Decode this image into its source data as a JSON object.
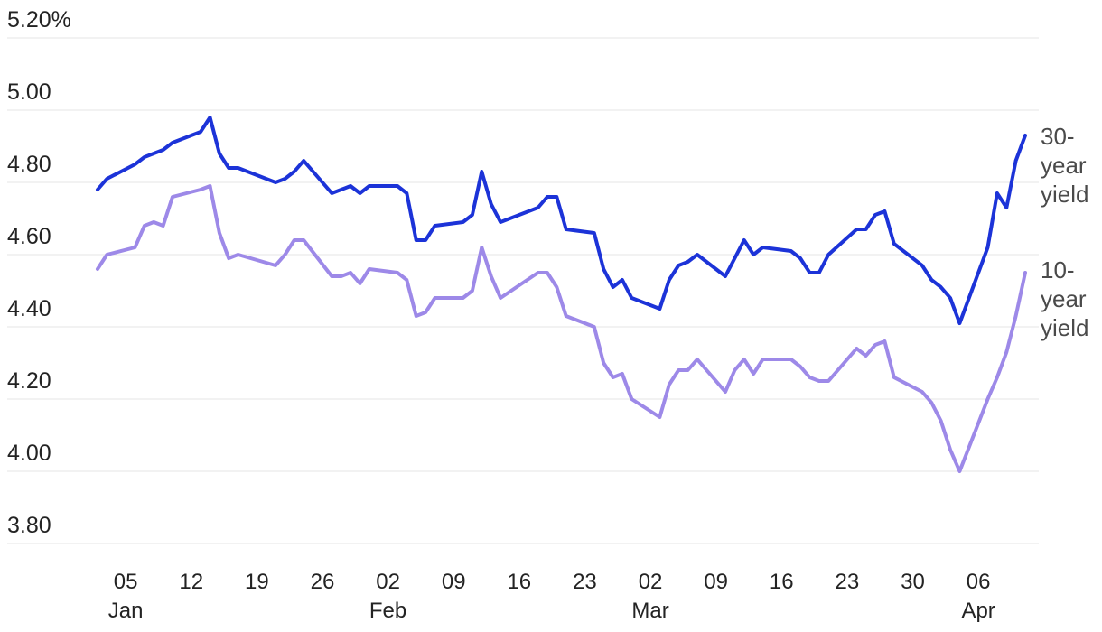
{
  "chart_data": {
    "type": "line",
    "title": "",
    "ylabel": "",
    "xlabel": "",
    "grid": "horizontal",
    "legend_position": "right-inline",
    "colors": {
      "line_30_year": "#1c33d8",
      "line_10_year": "#9d89e8",
      "gridline": "#e4e4e4",
      "axis_text": "#232323",
      "series_label_text": "#4a4a4a",
      "background": "#ffffff"
    },
    "ylim": [
      3.8,
      5.2
    ],
    "y_ticks": [
      {
        "label": "5.20%",
        "value": 5.2
      },
      {
        "label": "5.00",
        "value": 5.0
      },
      {
        "label": "4.80",
        "value": 4.8
      },
      {
        "label": "4.60",
        "value": 4.6
      },
      {
        "label": "4.40",
        "value": 4.4
      },
      {
        "label": "4.20",
        "value": 4.2
      },
      {
        "label": "4.00",
        "value": 4.0
      },
      {
        "label": "3.80",
        "value": 3.8
      }
    ],
    "x_ticks": [
      {
        "day": "05",
        "month": "Jan",
        "date": "2025-01-05"
      },
      {
        "day": "12",
        "month": "",
        "date": "2025-01-12"
      },
      {
        "day": "19",
        "month": "",
        "date": "2025-01-19"
      },
      {
        "day": "26",
        "month": "",
        "date": "2025-01-26"
      },
      {
        "day": "02",
        "month": "Feb",
        "date": "2025-02-02"
      },
      {
        "day": "09",
        "month": "",
        "date": "2025-02-09"
      },
      {
        "day": "16",
        "month": "",
        "date": "2025-02-16"
      },
      {
        "day": "23",
        "month": "",
        "date": "2025-02-23"
      },
      {
        "day": "02",
        "month": "Mar",
        "date": "2025-03-02"
      },
      {
        "day": "09",
        "month": "",
        "date": "2025-03-09"
      },
      {
        "day": "16",
        "month": "",
        "date": "2025-03-16"
      },
      {
        "day": "23",
        "month": "",
        "date": "2025-03-23"
      },
      {
        "day": "30",
        "month": "",
        "date": "2025-03-30"
      },
      {
        "day": "06",
        "month": "Apr",
        "date": "2025-04-06"
      }
    ],
    "x_range": {
      "start": "2025-01-02",
      "end": "2025-04-11"
    },
    "x": [
      "2025-01-02",
      "2025-01-03",
      "2025-01-06",
      "2025-01-07",
      "2025-01-08",
      "2025-01-09",
      "2025-01-10",
      "2025-01-13",
      "2025-01-14",
      "2025-01-15",
      "2025-01-16",
      "2025-01-17",
      "2025-01-21",
      "2025-01-22",
      "2025-01-23",
      "2025-01-24",
      "2025-01-27",
      "2025-01-28",
      "2025-01-29",
      "2025-01-30",
      "2025-01-31",
      "2025-02-03",
      "2025-02-04",
      "2025-02-05",
      "2025-02-06",
      "2025-02-07",
      "2025-02-10",
      "2025-02-11",
      "2025-02-12",
      "2025-02-13",
      "2025-02-14",
      "2025-02-18",
      "2025-02-19",
      "2025-02-20",
      "2025-02-21",
      "2025-02-24",
      "2025-02-25",
      "2025-02-26",
      "2025-02-27",
      "2025-02-28",
      "2025-03-03",
      "2025-03-04",
      "2025-03-05",
      "2025-03-06",
      "2025-03-07",
      "2025-03-10",
      "2025-03-11",
      "2025-03-12",
      "2025-03-13",
      "2025-03-14",
      "2025-03-17",
      "2025-03-18",
      "2025-03-19",
      "2025-03-20",
      "2025-03-21",
      "2025-03-24",
      "2025-03-25",
      "2025-03-26",
      "2025-03-27",
      "2025-03-28",
      "2025-03-31",
      "2025-04-01",
      "2025-04-02",
      "2025-04-03",
      "2025-04-04",
      "2025-04-07",
      "2025-04-08",
      "2025-04-09",
      "2025-04-10",
      "2025-04-11"
    ],
    "series": [
      {
        "name": "30-year yield",
        "right_label_lines": [
          "30-",
          "year",
          "yield"
        ],
        "color_key": "line_30_year",
        "values": [
          4.78,
          4.81,
          4.85,
          4.87,
          4.88,
          4.89,
          4.91,
          4.94,
          4.98,
          4.88,
          4.84,
          4.84,
          4.8,
          4.81,
          4.83,
          4.86,
          4.77,
          4.78,
          4.79,
          4.77,
          4.79,
          4.79,
          4.77,
          4.64,
          4.64,
          4.68,
          4.69,
          4.71,
          4.83,
          4.74,
          4.69,
          4.73,
          4.76,
          4.76,
          4.67,
          4.66,
          4.56,
          4.51,
          4.53,
          4.48,
          4.45,
          4.53,
          4.57,
          4.58,
          4.6,
          4.54,
          4.59,
          4.64,
          4.6,
          4.62,
          4.61,
          4.59,
          4.55,
          4.55,
          4.6,
          4.67,
          4.67,
          4.71,
          4.72,
          4.63,
          4.57,
          4.53,
          4.51,
          4.48,
          4.41,
          4.62,
          4.77,
          4.73,
          4.86,
          4.93
        ]
      },
      {
        "name": "10-year yield",
        "right_label_lines": [
          "10-",
          "year",
          "yield"
        ],
        "color_key": "line_10_year",
        "values": [
          4.56,
          4.6,
          4.62,
          4.68,
          4.69,
          4.68,
          4.76,
          4.78,
          4.79,
          4.66,
          4.59,
          4.6,
          4.57,
          4.6,
          4.64,
          4.64,
          4.54,
          4.54,
          4.55,
          4.52,
          4.56,
          4.55,
          4.53,
          4.43,
          4.44,
          4.48,
          4.48,
          4.5,
          4.62,
          4.54,
          4.48,
          4.55,
          4.55,
          4.51,
          4.43,
          4.4,
          4.3,
          4.26,
          4.27,
          4.2,
          4.15,
          4.24,
          4.28,
          4.28,
          4.31,
          4.22,
          4.28,
          4.31,
          4.27,
          4.31,
          4.31,
          4.29,
          4.26,
          4.25,
          4.25,
          4.34,
          4.32,
          4.35,
          4.36,
          4.26,
          4.22,
          4.19,
          4.14,
          4.06,
          4.0,
          4.2,
          4.26,
          4.33,
          4.43,
          4.55
        ]
      }
    ]
  }
}
